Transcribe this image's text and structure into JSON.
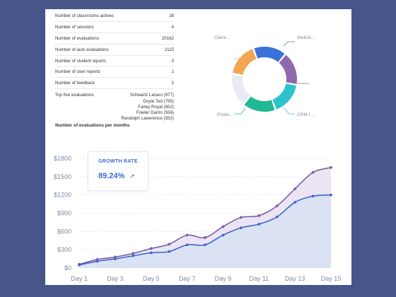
{
  "stats": [
    {
      "label": "Number of classrooms actives",
      "value": "28"
    },
    {
      "label": "Number of sessions",
      "value": "4"
    },
    {
      "label": "Number of evaluations",
      "value": "20162"
    },
    {
      "label": "Number of auto evaluations",
      "value": "2115"
    },
    {
      "label": "Number of student reports",
      "value": "0"
    },
    {
      "label": "Number of user reports",
      "value": "1"
    },
    {
      "label": "Number of feedback",
      "value": "2"
    }
  ],
  "top_five": {
    "label": "Top five evaluations",
    "names": [
      "Schwartz Lazaro (977)",
      "Doyle Ted (795)",
      "Farley Royal (652)",
      "Fowler Darrin (556)",
      "Randolph Lawerence (552)"
    ]
  },
  "donut": {
    "labels": {
      "client": "Client...",
      "website": "Websit...",
      "product": "Produ...",
      "crm": "CRM I..."
    },
    "segments": [
      {
        "name": "blue",
        "color": "#3b72d9",
        "fraction": 0.16
      },
      {
        "name": "purple",
        "color": "#8f68b0",
        "fraction": 0.16
      },
      {
        "name": "cyan",
        "color": "#2cc3cf",
        "fraction": 0.16
      },
      {
        "name": "teal",
        "color": "#22b894",
        "fraction": 0.16
      },
      {
        "name": "light-gray",
        "color": "#e8ebf1",
        "fraction": 0.16
      },
      {
        "name": "orange",
        "color": "#f2a650",
        "fraction": 0.16
      }
    ]
  },
  "chart_section": {
    "title": "Number of evaluations per months"
  },
  "growth": {
    "label": "GROWTH RATE",
    "value": "89.24%",
    "icon": "trending-up-icon"
  },
  "chart_data": {
    "type": "area",
    "x": [
      "Day 1",
      "Day 2",
      "Day 3",
      "Day 4",
      "Day 5",
      "Day 6",
      "Day 7",
      "Day 8",
      "Day 9",
      "Day 10",
      "Day 11",
      "Day 12",
      "Day 13",
      "Day 14",
      "Day 15"
    ],
    "x_tick_labels": [
      "Day 1",
      "Day 3",
      "Day 5",
      "Day 7",
      "Day 9",
      "Day 11",
      "Day 13",
      "Day 15"
    ],
    "y_tick_labels": [
      "$0",
      "$300",
      "$600",
      "$900",
      "$1200",
      "$1500",
      "$1800"
    ],
    "ylim": [
      0,
      1800
    ],
    "grid": true,
    "series": [
      {
        "name": "",
        "color": "#7b5ea7",
        "fill": "#e7dff0",
        "values": [
          60,
          140,
          180,
          240,
          320,
          390,
          540,
          500,
          680,
          830,
          860,
          1020,
          1300,
          1570,
          1650
        ]
      },
      {
        "name": "",
        "color": "#3f68c9",
        "fill": "#d7e2f5",
        "values": [
          50,
          110,
          150,
          200,
          250,
          270,
          380,
          380,
          540,
          660,
          720,
          840,
          1080,
          1180,
          1200
        ]
      }
    ]
  }
}
